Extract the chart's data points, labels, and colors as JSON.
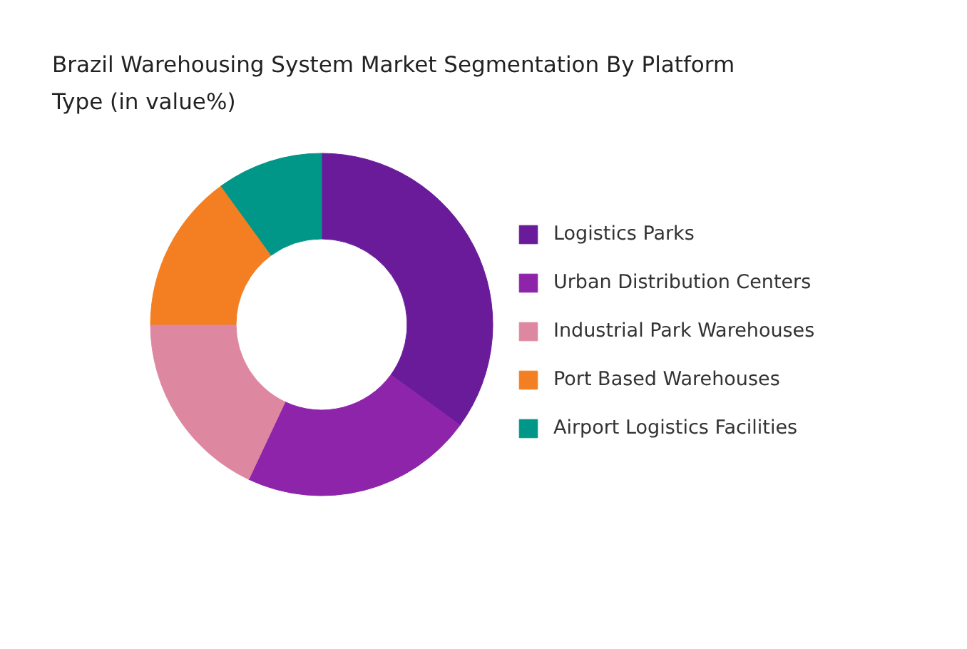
{
  "chart_data": {
    "type": "donut",
    "title": "Brazil Warehousing System Market Segmentation By Platform Type (in value%)",
    "categories": [
      "Logistics Parks",
      "Urban Distribution Centers",
      "Industrial Park Warehouses",
      "Port Based Warehouses",
      "Airport Logistics Facilities"
    ],
    "values": [
      35,
      22,
      18,
      15,
      10
    ],
    "colors": [
      "#6a1b9a",
      "#8e24aa",
      "#dd88a0",
      "#f47f22",
      "#009688"
    ],
    "legend": "right"
  }
}
